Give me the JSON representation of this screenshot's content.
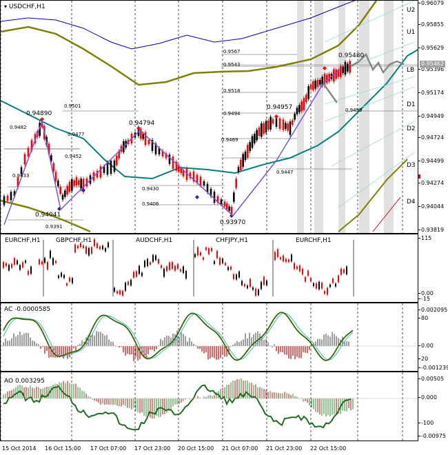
{
  "main": {
    "title": "USDCHF,H1",
    "axis_ticks": [
      "0.96079",
      "0.95855",
      "0.95629",
      "0.95396",
      "0.95174",
      "0.94949",
      "0.94724",
      "0.94499",
      "0.94274",
      "0.94044",
      "0.93819"
    ],
    "price_tag": "0.95462",
    "levels": [
      "U2",
      "U1",
      "LB",
      "D1",
      "D2",
      "D3",
      "D4"
    ],
    "peaks": [
      {
        "text": "0.94890"
      },
      {
        "text": "0.94794"
      },
      {
        "text": "0.94041"
      },
      {
        "text": "0.93970"
      },
      {
        "text": "0.94957"
      },
      {
        "text": "0.95480"
      }
    ],
    "small_labels": [
      {
        "text": "0.9482"
      },
      {
        "text": "0.9477"
      },
      {
        "text": "0.9452"
      },
      {
        "text": "0.9433"
      },
      {
        "text": "0.9391"
      },
      {
        "text": "0.9501"
      },
      {
        "text": "0.9430"
      },
      {
        "text": "0.9406"
      },
      {
        "text": "0.9567"
      },
      {
        "text": "0.9543"
      },
      {
        "text": "0.9518"
      },
      {
        "text": "0.9494"
      },
      {
        "text": "0.9469"
      },
      {
        "text": "0.9447"
      },
      {
        "text": "0.9499"
      }
    ]
  },
  "mini": {
    "labels": [
      "EURCHF,H1",
      "GBPCHF,H1",
      "AUDCHF,H1",
      "CHFJPY,H1",
      "EURCHF,H1"
    ],
    "axis_ticks": [
      "115",
      "0.00",
      "-15"
    ]
  },
  "ac": {
    "title": "AC -0.0000585",
    "axis_ticks": [
      "0.002095",
      "80",
      "0.00",
      "20",
      "-0.001239"
    ]
  },
  "ao": {
    "title": "AO 0.003295",
    "axis_ticks": [
      "0.00505",
      "0.000",
      "-100",
      "-0.00975"
    ]
  },
  "xaxis": [
    "15 Oct 2014",
    "16 Oct 15:00",
    "17 Oct 07:00",
    "17 Oct 23:00",
    "20 Oct 15:00",
    "21 Oct 07:00",
    "21 Oct 23:00",
    "22 Oct 15:00"
  ],
  "colors": {
    "up": "#000000",
    "down": "#ff0000",
    "teal": "#008080",
    "olive": "#808000",
    "navy": "#0000aa",
    "zigzag": "#7b52d6",
    "shade": "#e0e0e0"
  }
}
